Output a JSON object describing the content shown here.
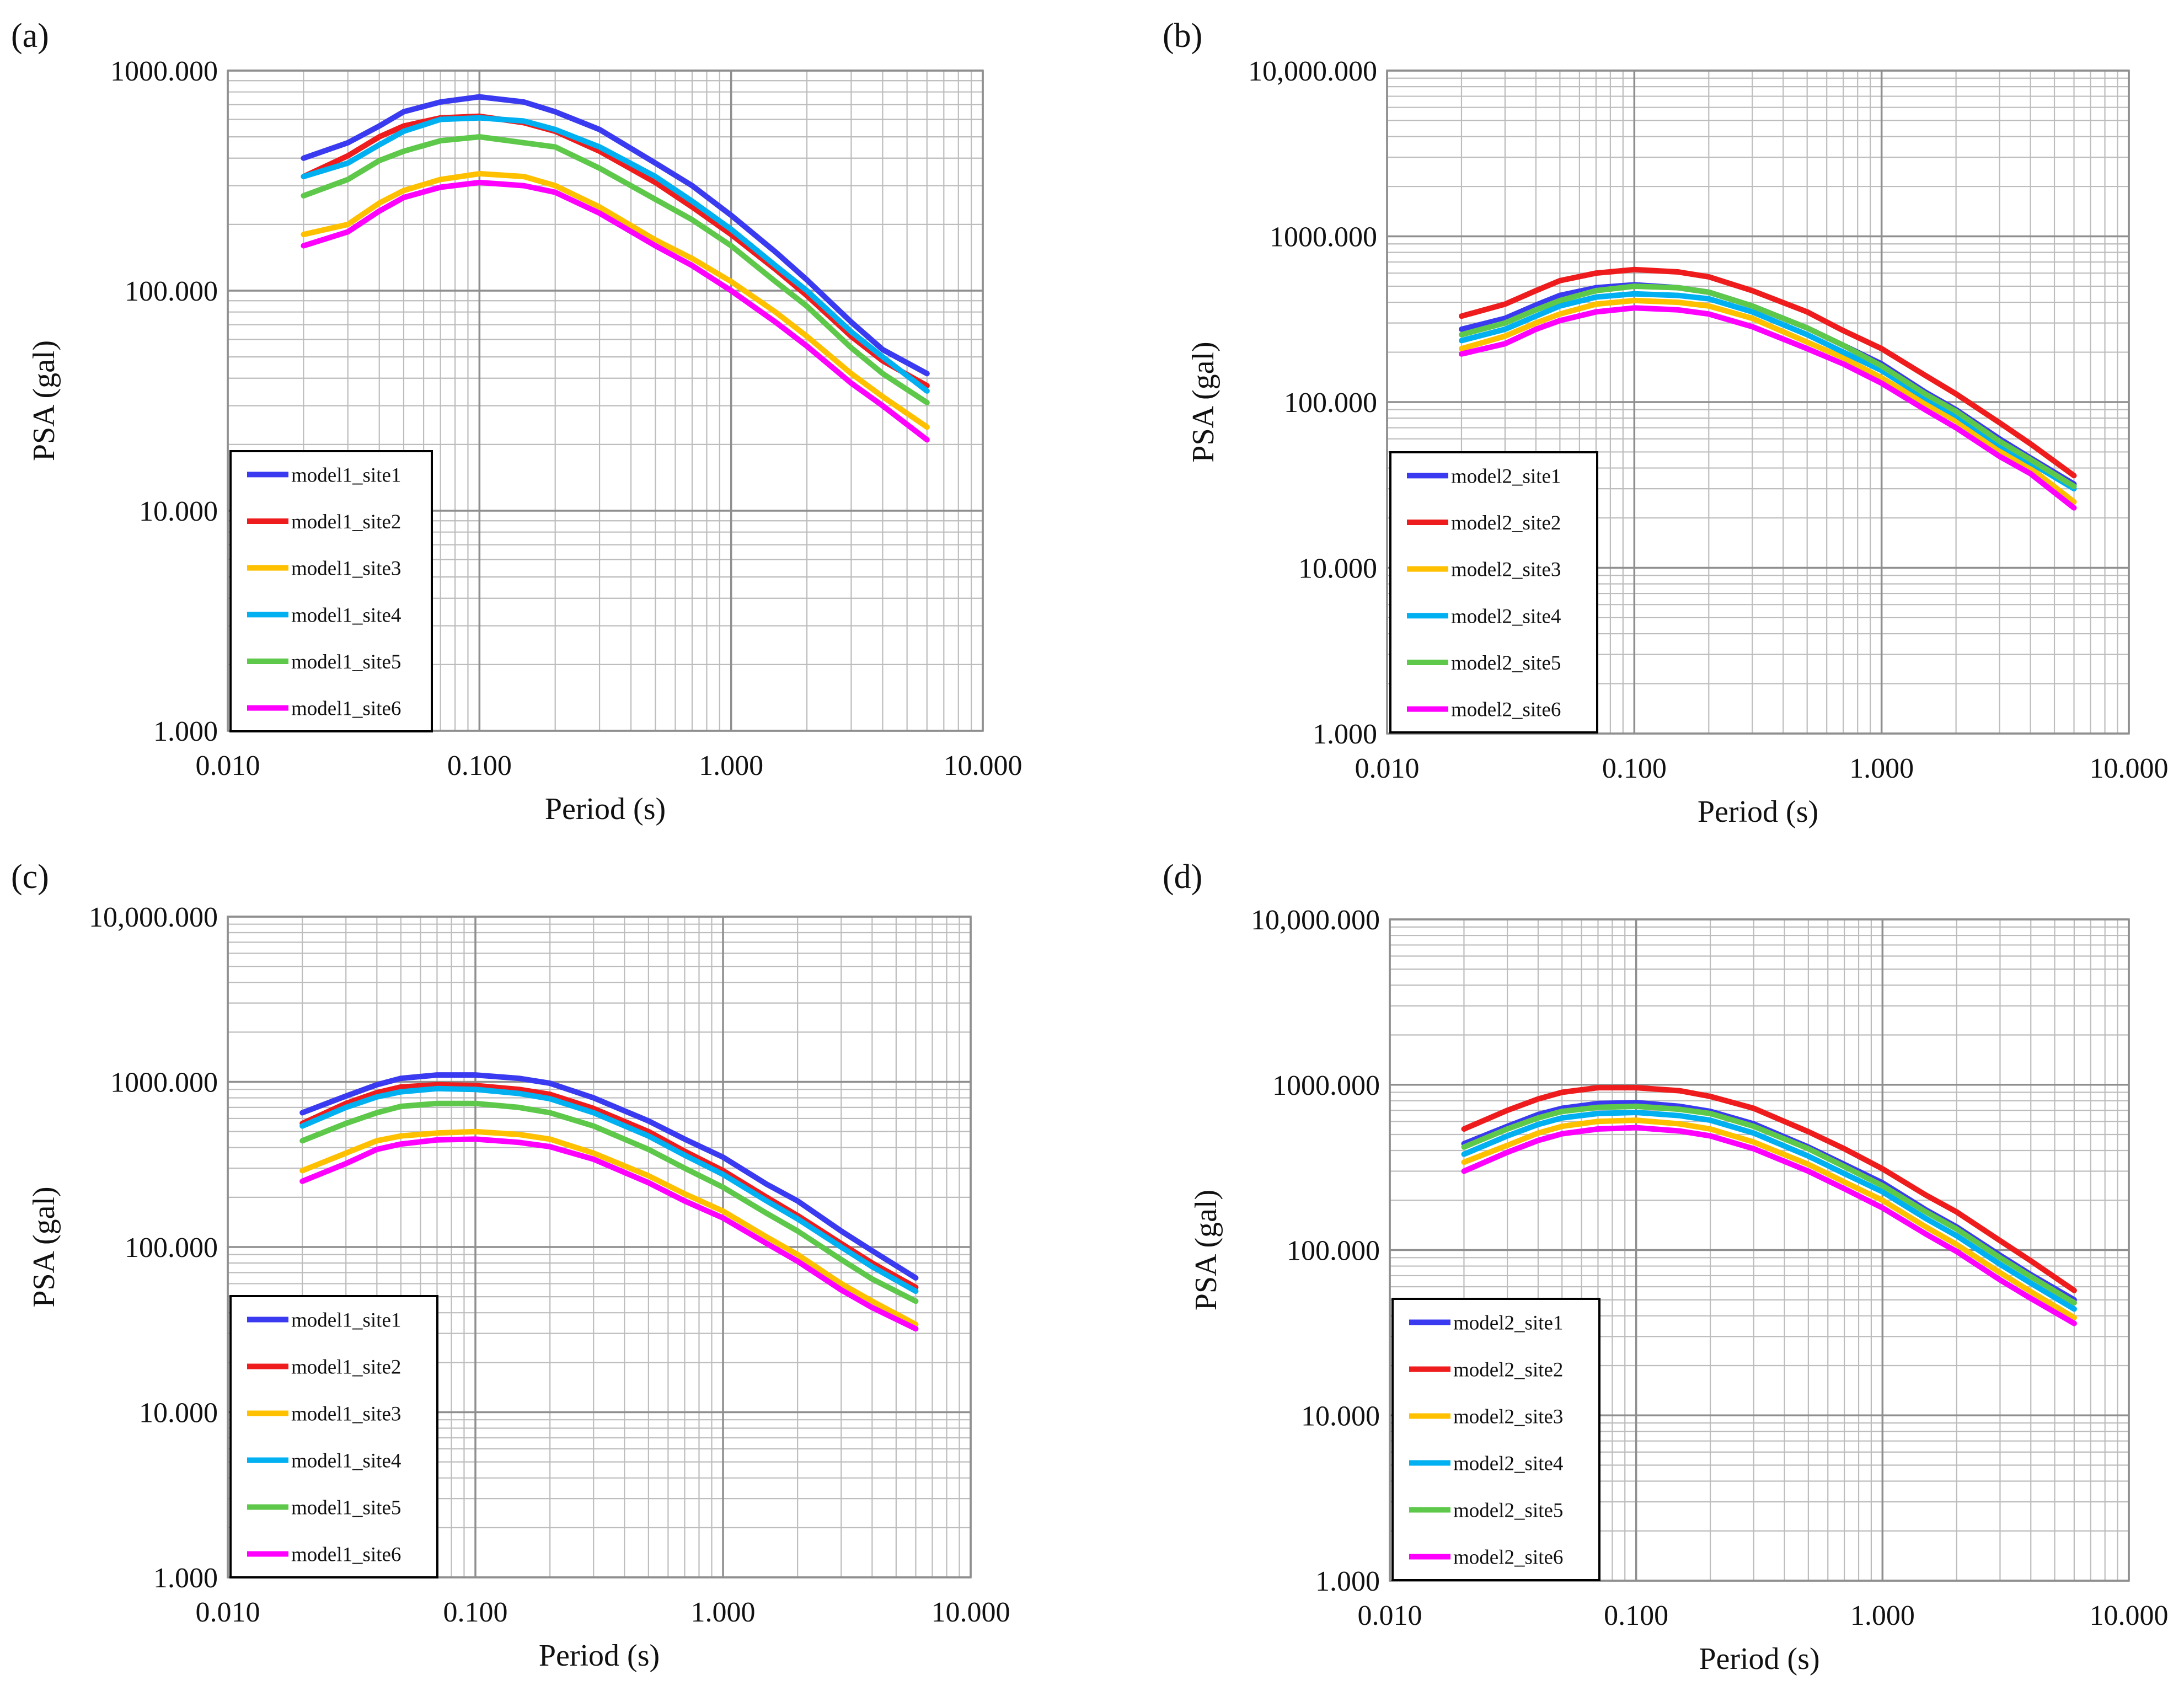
{
  "chart_data": [
    {
      "type": "line",
      "panel": "(a)",
      "xlabel": "Period (s)",
      "ylabel": "PSA (gal)",
      "xscale": "log",
      "yscale": "log",
      "xlim": [
        0.01,
        10
      ],
      "ylim": [
        1,
        1000
      ],
      "xticks": [
        "0.010",
        "0.100",
        "1.000",
        "10.000"
      ],
      "yticks": [
        "1.000",
        "10.000",
        "100.000",
        "1000.000"
      ],
      "legend_position": "lower-left",
      "x": [
        0.02,
        0.03,
        0.04,
        0.05,
        0.07,
        0.1,
        0.15,
        0.2,
        0.3,
        0.5,
        0.7,
        1.0,
        1.5,
        2.0,
        3.0,
        4.0,
        6.0
      ],
      "series": [
        {
          "name": "model1_site1",
          "color": "#3a3af0",
          "values": [
            400,
            470,
            560,
            650,
            720,
            760,
            720,
            650,
            540,
            380,
            300,
            220,
            150,
            112,
            72,
            54,
            42
          ]
        },
        {
          "name": "model1_site2",
          "color": "#ee1c1c",
          "values": [
            330,
            410,
            500,
            560,
            610,
            620,
            580,
            530,
            430,
            310,
            240,
            180,
            125,
            95,
            62,
            48,
            37
          ]
        },
        {
          "name": "model1_site3",
          "color": "#ffc000",
          "values": [
            180,
            200,
            250,
            285,
            320,
            340,
            330,
            300,
            240,
            170,
            140,
            110,
            80,
            62,
            42,
            33,
            24
          ]
        },
        {
          "name": "model1_site4",
          "color": "#00b0f0",
          "values": [
            330,
            380,
            460,
            530,
            600,
            610,
            590,
            540,
            450,
            330,
            255,
            190,
            130,
            100,
            65,
            50,
            35
          ]
        },
        {
          "name": "model1_site5",
          "color": "#5dc84a",
          "values": [
            270,
            320,
            390,
            430,
            480,
            500,
            470,
            450,
            360,
            260,
            210,
            160,
            110,
            85,
            55,
            42,
            31
          ]
        },
        {
          "name": "model1_site6",
          "color": "#ff00ff",
          "values": [
            160,
            185,
            230,
            265,
            295,
            310,
            300,
            280,
            225,
            160,
            130,
            100,
            72,
            56,
            38,
            30,
            21
          ]
        }
      ]
    },
    {
      "type": "line",
      "panel": "(b)",
      "xlabel": "Period (s)",
      "ylabel": "PSA (gal)",
      "xscale": "log",
      "yscale": "log",
      "xlim": [
        0.01,
        10
      ],
      "ylim": [
        1,
        10000
      ],
      "xticks": [
        "0.010",
        "0.100",
        "1.000",
        "10.000"
      ],
      "yticks": [
        "1.000",
        "10.000",
        "100.000",
        "1000.000",
        "10,000.000"
      ],
      "legend_position": "lower-left",
      "x": [
        0.02,
        0.03,
        0.04,
        0.05,
        0.07,
        0.1,
        0.15,
        0.2,
        0.3,
        0.5,
        0.7,
        1.0,
        1.5,
        2.0,
        3.0,
        4.0,
        6.0
      ],
      "series": [
        {
          "name": "model2_site1",
          "color": "#3a3af0",
          "values": [
            275,
            320,
            385,
            440,
            490,
            510,
            490,
            460,
            380,
            280,
            220,
            170,
            115,
            90,
            60,
            46,
            32
          ]
        },
        {
          "name": "model2_site2",
          "color": "#ee1c1c",
          "values": [
            330,
            390,
            470,
            540,
            600,
            630,
            610,
            570,
            470,
            350,
            270,
            210,
            145,
            112,
            75,
            56,
            36
          ]
        },
        {
          "name": "model2_site3",
          "color": "#ffc000",
          "values": [
            210,
            250,
            300,
            340,
            390,
            410,
            400,
            380,
            320,
            230,
            185,
            140,
            98,
            77,
            51,
            40,
            25
          ]
        },
        {
          "name": "model2_site4",
          "color": "#00b0f0",
          "values": [
            235,
            275,
            330,
            380,
            430,
            450,
            440,
            420,
            350,
            255,
            200,
            155,
            106,
            83,
            55,
            43,
            30
          ]
        },
        {
          "name": "model2_site5",
          "color": "#5dc84a",
          "values": [
            255,
            300,
            360,
            410,
            470,
            500,
            490,
            460,
            380,
            280,
            220,
            165,
            112,
            88,
            58,
            45,
            31
          ]
        },
        {
          "name": "model2_site6",
          "color": "#ff00ff",
          "values": [
            195,
            225,
            275,
            310,
            350,
            370,
            360,
            340,
            285,
            210,
            170,
            130,
            90,
            70,
            47,
            37,
            23
          ]
        }
      ]
    },
    {
      "type": "line",
      "panel": "(c)",
      "xlabel": "Period (s)",
      "ylabel": "PSA (gal)",
      "xscale": "log",
      "yscale": "log",
      "xlim": [
        0.01,
        10
      ],
      "ylim": [
        1,
        10000
      ],
      "xticks": [
        "0.010",
        "0.100",
        "1.000",
        "10.000"
      ],
      "yticks": [
        "1.000",
        "10.000",
        "100.000",
        "1000.000",
        "10,000.000"
      ],
      "legend_position": "lower-left",
      "x": [
        0.02,
        0.03,
        0.04,
        0.05,
        0.07,
        0.1,
        0.15,
        0.2,
        0.3,
        0.5,
        0.7,
        1.0,
        1.5,
        2.0,
        3.0,
        4.0,
        6.0
      ],
      "series": [
        {
          "name": "model1_site1",
          "color": "#3a3af0",
          "values": [
            650,
            820,
            960,
            1050,
            1100,
            1100,
            1050,
            980,
            800,
            580,
            450,
            350,
            240,
            190,
            125,
            95,
            65
          ]
        },
        {
          "name": "model1_site2",
          "color": "#ee1c1c",
          "values": [
            560,
            740,
            860,
            930,
            960,
            950,
            900,
            840,
            690,
            500,
            380,
            290,
            200,
            155,
            105,
            80,
            57
          ]
        },
        {
          "name": "model1_site3",
          "color": "#ffc000",
          "values": [
            290,
            370,
            440,
            470,
            490,
            500,
            480,
            450,
            370,
            270,
            210,
            165,
            115,
            90,
            60,
            47,
            34
          ]
        },
        {
          "name": "model1_site4",
          "color": "#00b0f0",
          "values": [
            540,
            700,
            810,
            870,
            910,
            900,
            850,
            790,
            650,
            470,
            360,
            275,
            190,
            148,
            100,
            76,
            54
          ]
        },
        {
          "name": "model1_site5",
          "color": "#5dc84a",
          "values": [
            440,
            560,
            650,
            710,
            740,
            740,
            700,
            650,
            540,
            390,
            300,
            230,
            160,
            125,
            84,
            64,
            47
          ]
        },
        {
          "name": "model1_site6",
          "color": "#ff00ff",
          "values": [
            250,
            320,
            390,
            420,
            445,
            450,
            430,
            405,
            340,
            245,
            190,
            150,
            105,
            82,
            55,
            43,
            32
          ]
        }
      ]
    },
    {
      "type": "line",
      "panel": "(d)",
      "xlabel": "Period (s)",
      "ylabel": "PSA (gal)",
      "xscale": "log",
      "yscale": "log",
      "xlim": [
        0.01,
        10
      ],
      "ylim": [
        1,
        10000
      ],
      "xticks": [
        "0.010",
        "0.100",
        "1.000",
        "10.000"
      ],
      "yticks": [
        "1.000",
        "10.000",
        "100.000",
        "1000.000",
        "10,000.000"
      ],
      "legend_position": "lower-left",
      "x": [
        0.02,
        0.03,
        0.04,
        0.05,
        0.07,
        0.1,
        0.15,
        0.2,
        0.3,
        0.5,
        0.7,
        1.0,
        1.5,
        2.0,
        3.0,
        4.0,
        6.0
      ],
      "series": [
        {
          "name": "model2_site1",
          "color": "#3a3af0",
          "values": [
            440,
            560,
            660,
            720,
            770,
            780,
            740,
            690,
            580,
            420,
            330,
            255,
            175,
            138,
            93,
            71,
            50
          ]
        },
        {
          "name": "model2_site2",
          "color": "#ee1c1c",
          "values": [
            540,
            700,
            820,
            900,
            960,
            960,
            920,
            850,
            720,
            520,
            410,
            310,
            215,
            170,
            114,
            86,
            57
          ]
        },
        {
          "name": "model2_site3",
          "color": "#ffc000",
          "values": [
            340,
            430,
            510,
            560,
            600,
            610,
            580,
            540,
            450,
            330,
            258,
            200,
            138,
            108,
            73,
            56,
            39
          ]
        },
        {
          "name": "model2_site4",
          "color": "#00b0f0",
          "values": [
            380,
            490,
            575,
            630,
            670,
            680,
            650,
            610,
            510,
            370,
            290,
            225,
            155,
            122,
            82,
            63,
            44
          ]
        },
        {
          "name": "model2_site5",
          "color": "#5dc84a",
          "values": [
            420,
            540,
            630,
            690,
            730,
            740,
            710,
            670,
            560,
            410,
            320,
            245,
            170,
            134,
            90,
            69,
            48
          ]
        },
        {
          "name": "model2_site6",
          "color": "#ff00ff",
          "values": [
            300,
            390,
            460,
            505,
            540,
            550,
            525,
            490,
            410,
            300,
            235,
            180,
            125,
            98,
            66,
            51,
            36
          ]
        }
      ]
    }
  ]
}
